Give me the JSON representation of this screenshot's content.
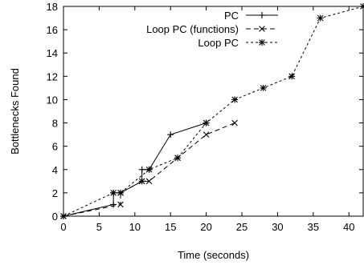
{
  "chart_data": {
    "type": "line",
    "title": "",
    "xlabel": "Time (seconds)",
    "ylabel": "Bottlenecks Found",
    "xlim": [
      0,
      42
    ],
    "ylim": [
      0,
      18
    ],
    "xticks": [
      0,
      5,
      10,
      15,
      20,
      25,
      30,
      35,
      40
    ],
    "yticks": [
      0,
      2,
      4,
      6,
      8,
      10,
      12,
      14,
      16,
      18
    ],
    "grid": false,
    "legend_position": "top-right",
    "series": [
      {
        "name": "PC",
        "marker": "plus",
        "dash": "solid",
        "x": [
          0,
          7,
          7,
          8,
          11,
          11,
          12,
          15,
          20
        ],
        "y": [
          0,
          1,
          2,
          2,
          3,
          4,
          4,
          7,
          8
        ]
      },
      {
        "name": "Loop PC (functions)",
        "marker": "cross",
        "dash": "dashed",
        "x": [
          0,
          8,
          8,
          11,
          12,
          16,
          20,
          24
        ],
        "y": [
          0,
          1,
          2,
          3,
          3,
          5,
          7,
          8
        ]
      },
      {
        "name": "Loop PC",
        "marker": "star",
        "dash": "dotted",
        "x": [
          0,
          7,
          8,
          12,
          16,
          20,
          24,
          28,
          32,
          36,
          42
        ],
        "y": [
          0,
          2,
          2,
          4,
          5,
          8,
          10,
          11,
          12,
          17,
          18
        ]
      }
    ]
  }
}
